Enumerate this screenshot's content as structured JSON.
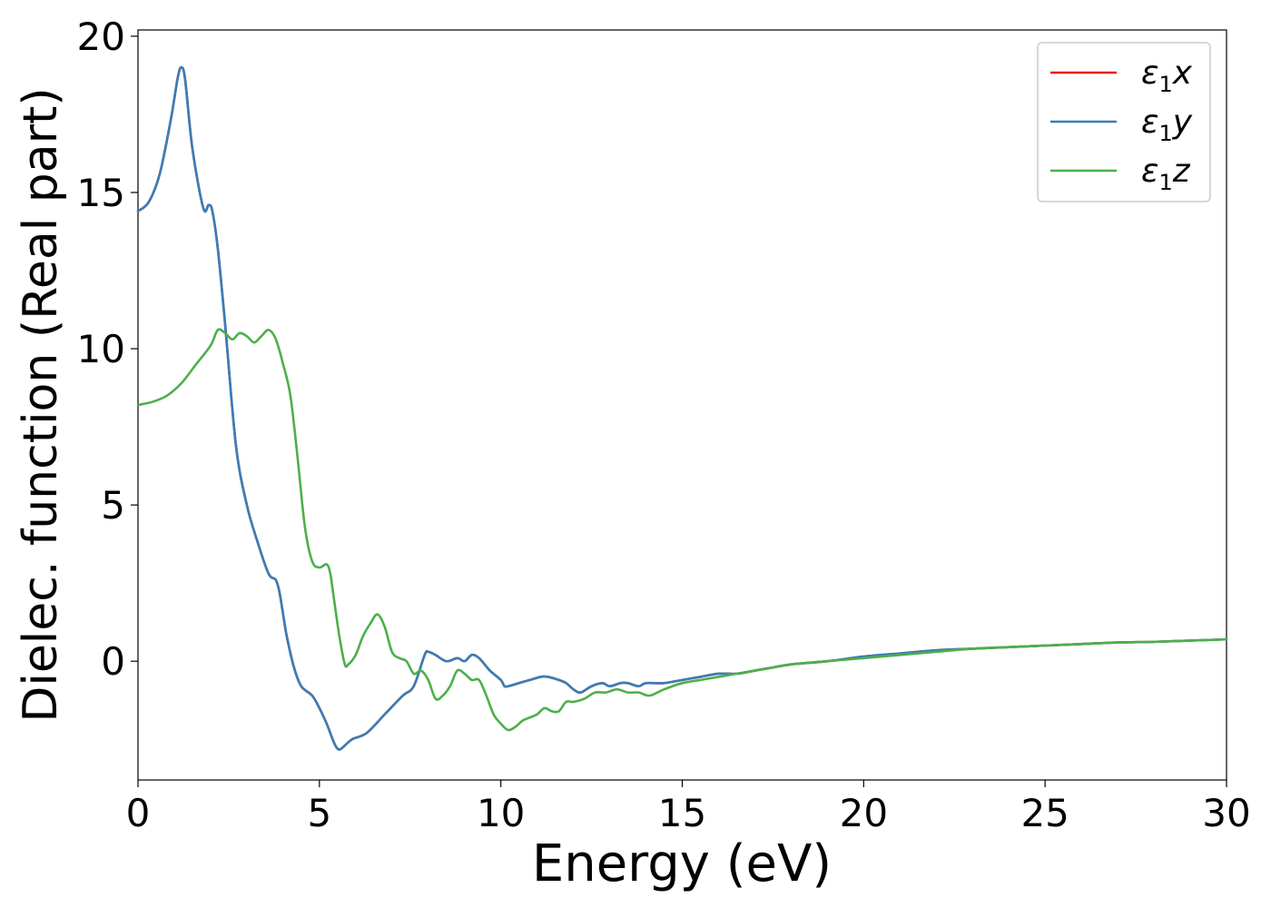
{
  "chart_data": {
    "type": "line",
    "title": "",
    "xlabel": "Energy (eV)",
    "ylabel": "Dielec. function (Real part)",
    "xlim": [
      0,
      30
    ],
    "ylim": [
      -3.8,
      20.2
    ],
    "xticks": [
      0,
      5,
      10,
      15,
      20,
      25,
      30
    ],
    "yticks": [
      0,
      5,
      10,
      15,
      20
    ],
    "xtick_labels": [
      "0",
      "5",
      "10",
      "15",
      "20",
      "25",
      "30"
    ],
    "ytick_labels": [
      "0",
      "5",
      "10",
      "15",
      "20"
    ],
    "grid": false,
    "legend": {
      "placement": "top-right",
      "entries": [
        {
          "base": "ε",
          "sub": "1",
          "var": "x"
        },
        {
          "base": "ε",
          "sub": "1",
          "var": "y"
        },
        {
          "base": "ε",
          "sub": "1",
          "var": "z"
        }
      ]
    },
    "series": [
      {
        "name": "ε1x",
        "color": "#e41a1c",
        "x": [
          0,
          0.3,
          0.6,
          0.9,
          1.1,
          1.2,
          1.3,
          1.5,
          1.8,
          1.95,
          2.05,
          2.2,
          2.4,
          2.7,
          3.0,
          3.3,
          3.6,
          3.8,
          3.9,
          4.0,
          4.1,
          4.3,
          4.5,
          4.8,
          5.0,
          5.2,
          5.4,
          5.5,
          5.6,
          5.9,
          6.3,
          6.8,
          7.3,
          7.6,
          7.9,
          8.0,
          8.2,
          8.5,
          8.8,
          9.0,
          9.2,
          9.4,
          9.7,
          10.0,
          10.1,
          10.2,
          10.5,
          10.8,
          11.1,
          11.3,
          11.6,
          11.8,
          12.0,
          12.2,
          12.5,
          12.8,
          13.0,
          13.3,
          13.5,
          13.8,
          14.0,
          14.5,
          15.0,
          15.5,
          16.0,
          16.5,
          17.0,
          17.5,
          18.0,
          19.0,
          20.0,
          21.0,
          22.0,
          23.0,
          24.0,
          25.0,
          26.0,
          27.0,
          28.0,
          29.0,
          30.0
        ],
        "values": [
          14.4,
          14.7,
          15.6,
          17.3,
          18.7,
          19.0,
          18.6,
          16.4,
          14.5,
          14.6,
          14.4,
          13.2,
          10.8,
          6.9,
          5.0,
          3.8,
          2.8,
          2.6,
          2.2,
          1.5,
          0.8,
          -0.2,
          -0.8,
          -1.1,
          -1.5,
          -2.0,
          -2.6,
          -2.8,
          -2.8,
          -2.5,
          -2.3,
          -1.7,
          -1.1,
          -0.8,
          0.2,
          0.3,
          0.2,
          0.0,
          0.1,
          0.0,
          0.2,
          0.1,
          -0.3,
          -0.6,
          -0.8,
          -0.8,
          -0.7,
          -0.6,
          -0.5,
          -0.5,
          -0.6,
          -0.7,
          -0.9,
          -1.0,
          -0.8,
          -0.7,
          -0.8,
          -0.7,
          -0.7,
          -0.8,
          -0.7,
          -0.7,
          -0.6,
          -0.5,
          -0.4,
          -0.4,
          -0.3,
          -0.2,
          -0.1,
          0.0,
          0.15,
          0.25,
          0.35,
          0.4,
          0.45,
          0.5,
          0.55,
          0.6,
          0.62,
          0.66,
          0.7
        ]
      },
      {
        "name": "ε1y",
        "color": "#377eb8",
        "x": [
          0,
          0.3,
          0.6,
          0.9,
          1.1,
          1.2,
          1.3,
          1.5,
          1.8,
          1.95,
          2.05,
          2.2,
          2.4,
          2.7,
          3.0,
          3.3,
          3.6,
          3.8,
          3.9,
          4.0,
          4.1,
          4.3,
          4.5,
          4.8,
          5.0,
          5.2,
          5.4,
          5.5,
          5.6,
          5.9,
          6.3,
          6.8,
          7.3,
          7.6,
          7.9,
          8.0,
          8.2,
          8.5,
          8.8,
          9.0,
          9.2,
          9.4,
          9.7,
          10.0,
          10.1,
          10.2,
          10.5,
          10.8,
          11.1,
          11.3,
          11.6,
          11.8,
          12.0,
          12.2,
          12.5,
          12.8,
          13.0,
          13.3,
          13.5,
          13.8,
          14.0,
          14.5,
          15.0,
          15.5,
          16.0,
          16.5,
          17.0,
          17.5,
          18.0,
          19.0,
          20.0,
          21.0,
          22.0,
          23.0,
          24.0,
          25.0,
          26.0,
          27.0,
          28.0,
          29.0,
          30.0
        ],
        "values": [
          14.4,
          14.7,
          15.6,
          17.3,
          18.7,
          19.0,
          18.6,
          16.4,
          14.5,
          14.6,
          14.4,
          13.2,
          10.8,
          6.9,
          5.0,
          3.8,
          2.8,
          2.6,
          2.2,
          1.5,
          0.8,
          -0.2,
          -0.8,
          -1.1,
          -1.5,
          -2.0,
          -2.6,
          -2.8,
          -2.8,
          -2.5,
          -2.3,
          -1.7,
          -1.1,
          -0.8,
          0.2,
          0.3,
          0.2,
          0.0,
          0.1,
          0.0,
          0.2,
          0.1,
          -0.3,
          -0.6,
          -0.8,
          -0.8,
          -0.7,
          -0.6,
          -0.5,
          -0.5,
          -0.6,
          -0.7,
          -0.9,
          -1.0,
          -0.8,
          -0.7,
          -0.8,
          -0.7,
          -0.7,
          -0.8,
          -0.7,
          -0.7,
          -0.6,
          -0.5,
          -0.4,
          -0.4,
          -0.3,
          -0.2,
          -0.1,
          0.0,
          0.15,
          0.25,
          0.35,
          0.4,
          0.45,
          0.5,
          0.55,
          0.6,
          0.62,
          0.66,
          0.7
        ]
      },
      {
        "name": "ε1z",
        "color": "#4daf4a",
        "x": [
          0,
          0.4,
          0.8,
          1.2,
          1.6,
          2.0,
          2.2,
          2.4,
          2.6,
          2.8,
          3.0,
          3.2,
          3.4,
          3.6,
          3.8,
          4.0,
          4.2,
          4.4,
          4.6,
          4.8,
          5.0,
          5.2,
          5.3,
          5.4,
          5.55,
          5.7,
          5.8,
          6.0,
          6.2,
          6.4,
          6.6,
          6.8,
          7.0,
          7.2,
          7.4,
          7.6,
          7.8,
          8.0,
          8.2,
          8.4,
          8.6,
          8.8,
          9.0,
          9.2,
          9.4,
          9.6,
          9.8,
          10.0,
          10.2,
          10.4,
          10.6,
          10.8,
          11.0,
          11.2,
          11.4,
          11.6,
          11.8,
          12.0,
          12.3,
          12.6,
          12.9,
          13.2,
          13.5,
          13.8,
          14.1,
          14.5,
          15.0,
          15.5,
          16.0,
          16.5,
          17.0,
          17.5,
          18.0,
          19.0,
          20.0,
          21.0,
          22.0,
          23.0,
          24.0,
          25.0,
          26.0,
          27.0,
          28.0,
          29.0,
          30.0
        ],
        "values": [
          8.2,
          8.3,
          8.5,
          8.9,
          9.5,
          10.1,
          10.6,
          10.5,
          10.3,
          10.5,
          10.4,
          10.2,
          10.4,
          10.6,
          10.3,
          9.5,
          8.5,
          6.5,
          4.3,
          3.2,
          3.0,
          3.1,
          2.8,
          2.0,
          0.8,
          -0.1,
          -0.1,
          0.2,
          0.8,
          1.2,
          1.5,
          1.1,
          0.3,
          0.1,
          0.0,
          -0.4,
          -0.3,
          -0.6,
          -1.2,
          -1.1,
          -0.8,
          -0.3,
          -0.4,
          -0.6,
          -0.6,
          -1.1,
          -1.7,
          -2.0,
          -2.2,
          -2.1,
          -1.9,
          -1.8,
          -1.7,
          -1.5,
          -1.6,
          -1.6,
          -1.3,
          -1.3,
          -1.2,
          -1.0,
          -1.0,
          -0.9,
          -1.0,
          -1.0,
          -1.1,
          -0.9,
          -0.7,
          -0.6,
          -0.5,
          -0.4,
          -0.3,
          -0.2,
          -0.1,
          0.0,
          0.1,
          0.2,
          0.3,
          0.4,
          0.45,
          0.5,
          0.55,
          0.6,
          0.62,
          0.66,
          0.7
        ]
      }
    ]
  }
}
